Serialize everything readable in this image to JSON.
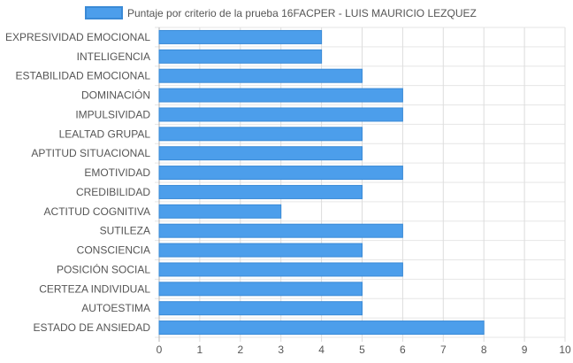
{
  "chart_data": {
    "type": "bar",
    "orientation": "horizontal",
    "categories": [
      "EXPRESIVIDAD EMOCIONAL",
      "INTELIGENCIA",
      "ESTABILIDAD EMOCIONAL",
      "DOMINACIÓN",
      "IMPULSIVIDAD",
      "LEALTAD GRUPAL",
      "APTITUD SITUACIONAL",
      "EMOTIVIDAD",
      "CREDIBILIDAD",
      "ACTITUD COGNITIVA",
      "SUTILEZA",
      "CONSCIENCIA",
      "POSICIÓN SOCIAL",
      "CERTEZA INDIVIDUAL",
      "AUTOESTIMA",
      "ESTADO DE ANSIEDAD"
    ],
    "series": [
      {
        "name": "Puntaje por criterio de la prueba 16FACPER - LUIS MAURICIO LEZQUEZ",
        "values": [
          4,
          4,
          5,
          6,
          6,
          5,
          5,
          6,
          5,
          3,
          6,
          5,
          6,
          5,
          5,
          8
        ]
      }
    ],
    "xlim": [
      0,
      10
    ],
    "xticks": [
      "0",
      "1",
      "2",
      "3",
      "4",
      "5",
      "6",
      "7",
      "8",
      "9",
      "10"
    ],
    "grid": true,
    "legend_position": "top",
    "colors": {
      "bar_fill": "#4c9eeb",
      "bar_stroke": "#3a8ad6",
      "grid": "#e6e6e6",
      "grid_vertical": "#dddddd",
      "axis": "#b4b4b4",
      "text": "#555555"
    }
  }
}
